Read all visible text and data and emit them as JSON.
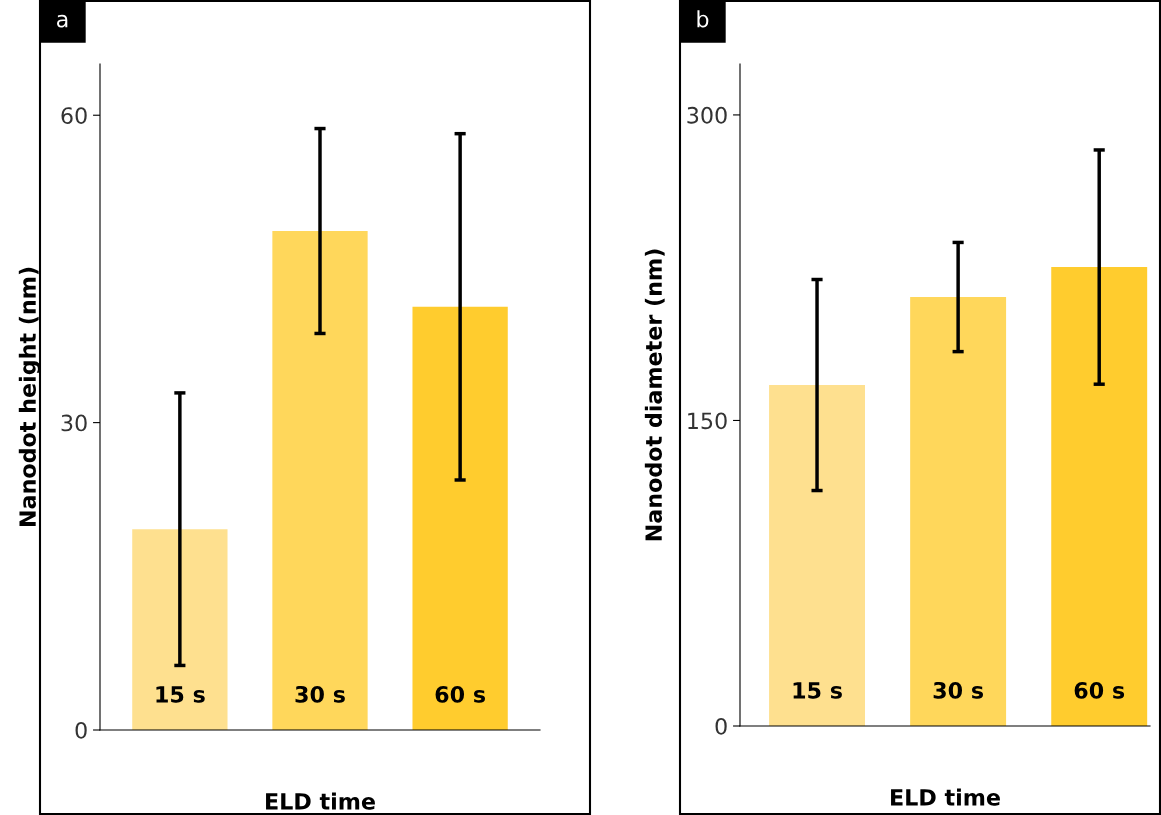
{
  "chart_data": [
    {
      "type": "bar",
      "categories": [
        "15 s",
        "30 s",
        "60 s"
      ],
      "values": [
        19.6,
        48.7,
        41.3
      ],
      "errors": [
        13.3,
        10,
        16.9
      ],
      "colors": [
        "#fee08f",
        "#ffd75b",
        "#ffcc2e"
      ],
      "ylabel": "Nanodot height (nm)",
      "xlabel": "ELD time",
      "ylim": [
        0,
        65
      ],
      "yticks": [
        0,
        30,
        60
      ],
      "annotations": [
        "a"
      ],
      "grid": false,
      "legend": false
    },
    {
      "type": "bar",
      "categories": [
        "15 s",
        "30 s",
        "60 s"
      ],
      "values": [
        167.4,
        210.6,
        225.3
      ],
      "errors": [
        51.8,
        26.8,
        57.5
      ],
      "colors": [
        "#fee08f",
        "#ffd75b",
        "#ffcc2e"
      ],
      "ylabel": "Nanodot diameter (nm)",
      "xlabel": "ELD time",
      "ylim": [
        0,
        325
      ],
      "yticks": [
        0,
        150,
        300
      ],
      "annotations": [
        "b"
      ],
      "grid": false,
      "legend": false
    }
  ]
}
